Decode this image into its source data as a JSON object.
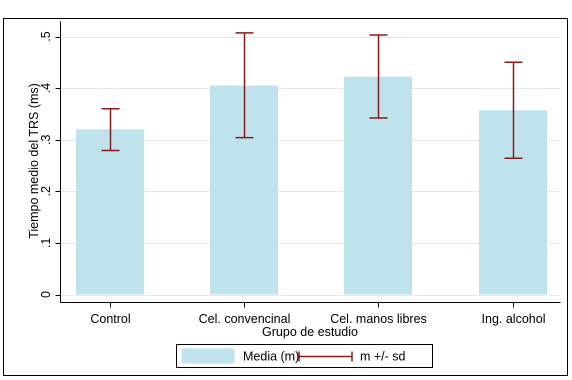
{
  "chart_data": {
    "type": "bar",
    "title": "",
    "xlabel": "Grupo de estudio",
    "ylabel": "Tiempo medio del TRS (ms)",
    "categories": [
      "Control",
      "Cel. convencinal",
      "Cel. manos libres",
      "Ing. alcohol"
    ],
    "series": [
      {
        "name": "Media (m)",
        "values": [
          0.32,
          0.405,
          0.422,
          0.357
        ]
      }
    ],
    "error_bars": {
      "name": "m +/- sd",
      "lower": [
        0.279,
        0.304,
        0.342,
        0.264
      ],
      "upper": [
        0.36,
        0.507,
        0.503,
        0.45
      ]
    },
    "ylim": [
      0,
      0.5
    ],
    "yticks": [
      0,
      0.1,
      0.2,
      0.3,
      0.4,
      0.5
    ],
    "ytick_labels": [
      "0",
      ".1",
      ".2",
      ".3",
      ".4",
      ".5"
    ],
    "grid": true,
    "legend_position": "bottom",
    "colors": {
      "bar_fill": "#bfe3ec",
      "error_bar": "#8b1a1a",
      "grid": "#e2eaef",
      "frame": "#000000",
      "plot_background": "#ffffff",
      "page_background": "#ffffff"
    }
  }
}
